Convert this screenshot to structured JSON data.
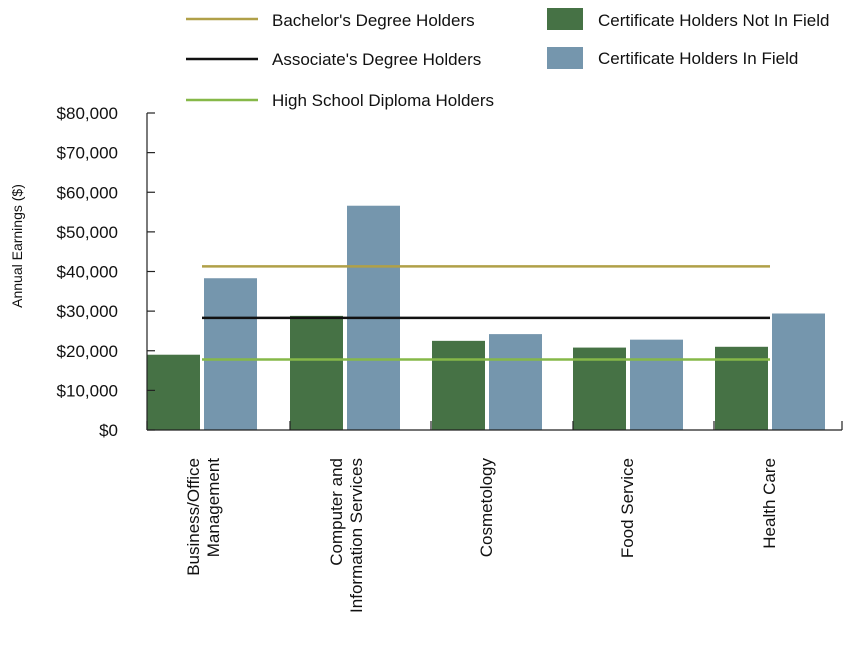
{
  "colors": {
    "not_in_field": "#467245",
    "in_field": "#7596ad",
    "bachelors": "#b0a048",
    "associates": "#111111",
    "high_school": "#86b848",
    "axis": "#222222"
  },
  "legend": {
    "bachelors": "Bachelor's Degree Holders",
    "associates": "Associate's Degree Holders",
    "high_school": "High School Diploma Holders",
    "not_in_field": "Certificate Holders Not In Field",
    "in_field": "Certificate Holders In Field"
  },
  "chart_data": {
    "type": "bar",
    "ylabel": "Annual Earnings ($)",
    "xlabel": "",
    "ylim": [
      0,
      80000
    ],
    "yticks": [
      0,
      10000,
      20000,
      30000,
      40000,
      50000,
      60000,
      70000,
      80000
    ],
    "ytick_labels": [
      "$0",
      "$10,000",
      "$20,000",
      "$30,000",
      "$40,000",
      "$50,000",
      "$60,000",
      "$70,000",
      "$80,000"
    ],
    "categories": [
      [
        "Business/Office",
        "Management"
      ],
      [
        "Computer and",
        "Information Services"
      ],
      [
        "Cosmetology"
      ],
      [
        "Food Service"
      ],
      [
        "Health Care"
      ]
    ],
    "series": [
      {
        "name": "Certificate Holders Not In Field",
        "values": [
          19000,
          28800,
          22500,
          20800,
          21000
        ]
      },
      {
        "name": "Certificate Holders In Field",
        "values": [
          38300,
          56600,
          24200,
          22800,
          29400
        ]
      }
    ],
    "reference_lines": [
      {
        "name": "Bachelor's Degree Holders",
        "value": 41300
      },
      {
        "name": "Associate's Degree Holders",
        "value": 28300
      },
      {
        "name": "High School Diploma Holders",
        "value": 17800
      }
    ],
    "grid": false,
    "legend_position": "top"
  }
}
